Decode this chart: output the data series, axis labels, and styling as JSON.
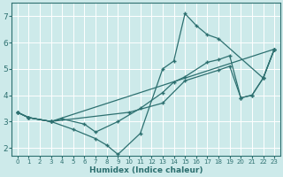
{
  "xlabel": "Humidex (Indice chaleur)",
  "background_color": "#cdeaea",
  "line_color": "#2d7070",
  "grid_color": "#ffffff",
  "xlim": [
    -0.5,
    23.5
  ],
  "ylim": [
    1.7,
    7.5
  ],
  "xticks": [
    0,
    1,
    2,
    3,
    4,
    5,
    6,
    7,
    8,
    9,
    10,
    11,
    12,
    13,
    14,
    15,
    16,
    17,
    18,
    19,
    20,
    21,
    22,
    23
  ],
  "yticks": [
    2,
    3,
    4,
    5,
    6,
    7
  ],
  "series": [
    {
      "x": [
        0,
        1,
        3,
        5,
        7,
        8,
        9,
        11,
        13,
        14,
        15,
        16,
        17,
        18,
        22,
        23
      ],
      "y": [
        3.35,
        3.15,
        3.0,
        2.7,
        2.35,
        2.1,
        1.75,
        2.55,
        5.0,
        5.3,
        7.1,
        6.65,
        6.3,
        6.15,
        4.65,
        5.75
      ]
    },
    {
      "x": [
        0,
        1,
        3,
        23
      ],
      "y": [
        3.35,
        3.15,
        3.0,
        5.75
      ]
    },
    {
      "x": [
        0,
        1,
        3,
        10,
        13,
        15,
        18,
        19,
        20,
        21,
        22,
        23
      ],
      "y": [
        3.35,
        3.15,
        3.0,
        3.35,
        3.7,
        4.55,
        4.95,
        5.1,
        3.9,
        4.0,
        4.65,
        5.75
      ]
    },
    {
      "x": [
        0,
        1,
        3,
        4,
        6,
        7,
        9,
        11,
        13,
        14,
        15,
        17,
        18,
        19,
        20,
        21,
        22,
        23
      ],
      "y": [
        3.35,
        3.15,
        3.0,
        3.1,
        2.9,
        2.6,
        3.0,
        3.5,
        4.1,
        4.5,
        4.7,
        5.25,
        5.35,
        5.5,
        3.9,
        4.0,
        4.65,
        5.75
      ]
    }
  ]
}
